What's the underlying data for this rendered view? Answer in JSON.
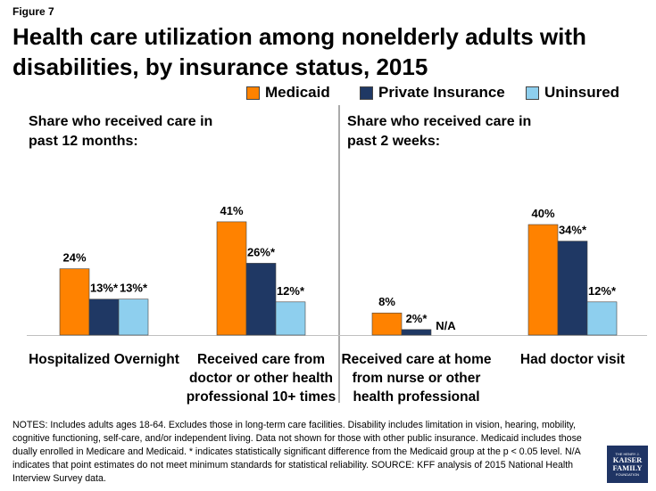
{
  "figure_label": "Figure 7",
  "title": "Health care utilization among nonelderly adults with disabilities, by insurance status, 2015",
  "colors": {
    "medicaid": "#ff8200",
    "private": "#1f3864",
    "uninsured": "#8ecfee"
  },
  "panels": {
    "left_label": [
      "Share who received care in",
      "past 12 months:"
    ],
    "right_label": [
      "Share who received care in",
      "past 2 weeks:"
    ]
  },
  "notes": "NOTES: Includes adults ages 18-64. Excludes those in long-term care facilities. Disability includes limitation in vision, hearing, mobility, cognitive functioning, self-care, and/or independent living. Data not shown for those with other public insurance. Medicaid includes those dually enrolled in Medicare and Medicaid. * indicates statistically significant difference from the Medicaid group at the p < 0.05 level. N/A indicates that point estimates do not meet minimum standards for statistical reliability. SOURCE: KFF analysis of 2015 National Health Interview Survey data.",
  "logo": {
    "line1": "THE HENRY J.",
    "line2": "KAISER",
    "line3": "FAMILY",
    "line4": "FOUNDATION"
  },
  "chart_data": {
    "type": "bar",
    "categories": [
      [
        "Hospitalized Overnight"
      ],
      [
        "Received care from",
        "doctor or other health",
        "professional 10+ times"
      ],
      [
        "Received care at home",
        "from nurse or other",
        "health professional"
      ],
      [
        "Had doctor visit"
      ]
    ],
    "series": [
      {
        "name": "Medicaid",
        "values": [
          24,
          41,
          8,
          40
        ],
        "labels": [
          "24%",
          "41%",
          "8%",
          "40%"
        ]
      },
      {
        "name": "Private Insurance",
        "values": [
          13,
          26,
          2,
          34
        ],
        "labels": [
          "13%*",
          "26%*",
          "2%*",
          "34%*"
        ]
      },
      {
        "name": "Uninsured",
        "values": [
          13,
          12,
          null,
          12
        ],
        "labels": [
          "13%*",
          "12%*",
          "N/A",
          "12%*"
        ]
      }
    ],
    "ylim": [
      0,
      45
    ],
    "legend_position": "top-right"
  }
}
